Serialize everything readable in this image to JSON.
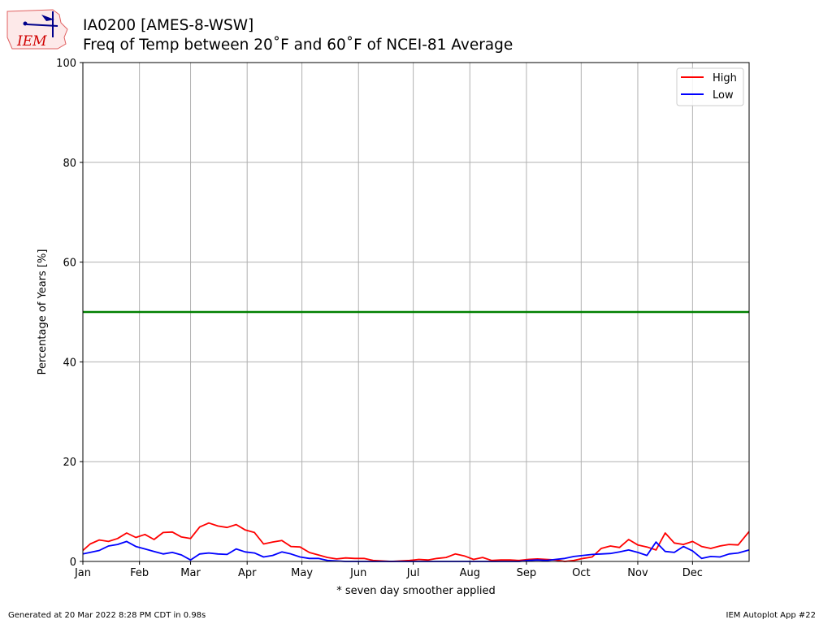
{
  "header": {
    "title_line1": "IA0200 [AMES-8-WSW]",
    "title_line2": "Freq of Temp between 20˚F and 60˚F of NCEI-81 Average",
    "logo_text": "IEM"
  },
  "footer": {
    "generated": "Generated at 20 Mar 2022 8:28 PM CDT in 0.98s",
    "app": "IEM Autoplot App #22"
  },
  "chart_data": {
    "type": "line",
    "title": "Freq of Temp between 20˚F and 60˚F of NCEI-81 Average",
    "xlabel": "* seven day smoother applied",
    "ylabel": "Percentage of Years [%]",
    "ylim": [
      0,
      100
    ],
    "xlim": [
      1,
      366
    ],
    "yticks": [
      0,
      20,
      40,
      60,
      80,
      100
    ],
    "xticks": [
      {
        "day": 1,
        "label": "Jan"
      },
      {
        "day": 32,
        "label": "Feb"
      },
      {
        "day": 60,
        "label": "Mar"
      },
      {
        "day": 91,
        "label": "Apr"
      },
      {
        "day": 121,
        "label": "May"
      },
      {
        "day": 152,
        "label": "Jun"
      },
      {
        "day": 182,
        "label": "Jul"
      },
      {
        "day": 213,
        "label": "Aug"
      },
      {
        "day": 244,
        "label": "Sep"
      },
      {
        "day": 274,
        "label": "Oct"
      },
      {
        "day": 305,
        "label": "Nov"
      },
      {
        "day": 335,
        "label": "Dec"
      }
    ],
    "grid": true,
    "legend_position": "top-right",
    "reference_line": {
      "y": 50,
      "color": "#008000"
    },
    "series": [
      {
        "name": "High",
        "color": "#ff0000",
        "x": [
          1,
          5,
          10,
          15,
          20,
          25,
          30,
          35,
          40,
          45,
          50,
          55,
          60,
          65,
          70,
          75,
          80,
          85,
          90,
          95,
          100,
          105,
          110,
          115,
          120,
          125,
          130,
          135,
          140,
          145,
          150,
          155,
          160,
          165,
          170,
          175,
          180,
          185,
          190,
          195,
          200,
          205,
          210,
          215,
          220,
          225,
          230,
          235,
          240,
          245,
          250,
          255,
          260,
          265,
          270,
          275,
          280,
          285,
          290,
          295,
          300,
          305,
          310,
          315,
          320,
          325,
          330,
          335,
          340,
          345,
          350,
          355,
          360,
          366
        ],
        "y": [
          2.2,
          3.5,
          4.3,
          4.0,
          4.6,
          5.7,
          4.8,
          5.4,
          4.4,
          5.8,
          5.9,
          4.9,
          4.6,
          6.9,
          7.7,
          7.1,
          6.8,
          7.4,
          6.3,
          5.8,
          3.5,
          3.9,
          4.2,
          3.0,
          2.9,
          1.8,
          1.3,
          0.8,
          0.5,
          0.7,
          0.6,
          0.6,
          0.2,
          0.1,
          0.0,
          0.1,
          0.2,
          0.4,
          0.3,
          0.6,
          0.8,
          1.5,
          1.1,
          0.4,
          0.8,
          0.2,
          0.3,
          0.3,
          0.2,
          0.4,
          0.5,
          0.4,
          0.3,
          0.0,
          0.2,
          0.6,
          0.9,
          2.6,
          3.1,
          2.8,
          4.4,
          3.3,
          2.9,
          2.3,
          5.7,
          3.7,
          3.4,
          4.0,
          3.0,
          2.6,
          3.1,
          3.4,
          3.3,
          6.0
        ]
      },
      {
        "name": "Low",
        "color": "#0000ff",
        "x": [
          1,
          5,
          10,
          15,
          20,
          25,
          30,
          35,
          40,
          45,
          50,
          55,
          60,
          65,
          70,
          75,
          80,
          85,
          90,
          95,
          100,
          105,
          110,
          115,
          120,
          125,
          130,
          135,
          140,
          145,
          150,
          155,
          160,
          165,
          170,
          175,
          180,
          185,
          190,
          195,
          200,
          205,
          210,
          215,
          220,
          225,
          230,
          235,
          240,
          245,
          250,
          255,
          260,
          265,
          270,
          275,
          280,
          285,
          290,
          295,
          300,
          305,
          310,
          315,
          320,
          325,
          330,
          335,
          340,
          345,
          350,
          355,
          360,
          366
        ],
        "y": [
          1.5,
          1.8,
          2.2,
          3.1,
          3.4,
          4.0,
          3.0,
          2.5,
          2.0,
          1.5,
          1.8,
          1.3,
          0.3,
          1.5,
          1.7,
          1.5,
          1.4,
          2.5,
          1.9,
          1.7,
          0.9,
          1.2,
          1.9,
          1.5,
          0.9,
          0.6,
          0.6,
          0.2,
          0.1,
          0.0,
          0.0,
          0.0,
          0.0,
          0.0,
          0.0,
          0.0,
          0.0,
          0.0,
          0.0,
          0.0,
          0.0,
          0.0,
          0.0,
          0.0,
          0.0,
          0.0,
          0.0,
          0.0,
          0.0,
          0.2,
          0.3,
          0.2,
          0.4,
          0.6,
          1.0,
          1.2,
          1.4,
          1.5,
          1.6,
          1.9,
          2.3,
          1.8,
          1.2,
          3.9,
          2.0,
          1.8,
          3.0,
          2.1,
          0.6,
          1.0,
          0.9,
          1.5,
          1.7,
          2.3
        ]
      }
    ]
  }
}
